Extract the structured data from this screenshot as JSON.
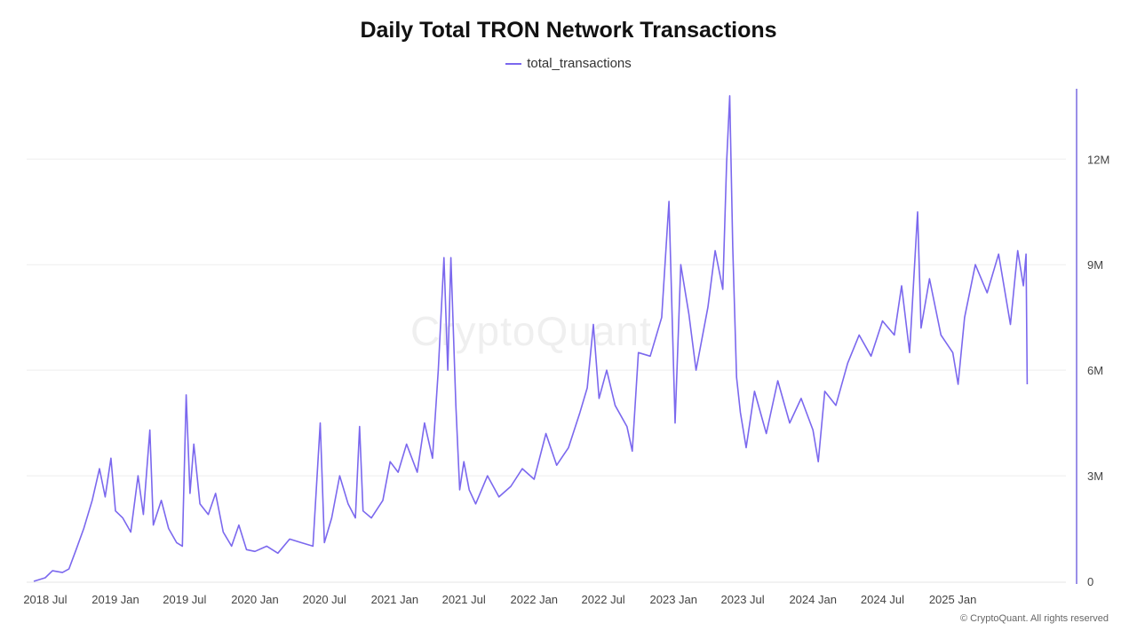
{
  "colors": {
    "series": "#7B68EE",
    "grid": "#eeeeee",
    "axis": "#9a8fe8"
  },
  "copyright": "© CryptoQuant. All rights reserved",
  "watermark": "CryptoQuant",
  "chart_data": {
    "type": "line",
    "title": "Daily Total TRON Network Transactions",
    "legend_position": "top-center",
    "grid": true,
    "y_axis_side": "right",
    "ylim": [
      0,
      14000000
    ],
    "y_ticks": [
      {
        "value": 0,
        "label": "0"
      },
      {
        "value": 3000000,
        "label": "3M"
      },
      {
        "value": 6000000,
        "label": "6M"
      },
      {
        "value": 9000000,
        "label": "9M"
      },
      {
        "value": 12000000,
        "label": "12M"
      }
    ],
    "xlim": [
      "2018-06-01",
      "2025-10-15"
    ],
    "x_ticks": [
      {
        "date": "2018-07-01",
        "label": "2018 Jul"
      },
      {
        "date": "2019-01-01",
        "label": "2019 Jan"
      },
      {
        "date": "2019-07-01",
        "label": "2019 Jul"
      },
      {
        "date": "2020-01-01",
        "label": "2020 Jan"
      },
      {
        "date": "2020-07-01",
        "label": "2020 Jul"
      },
      {
        "date": "2021-01-01",
        "label": "2021 Jan"
      },
      {
        "date": "2021-07-01",
        "label": "2021 Jul"
      },
      {
        "date": "2022-01-01",
        "label": "2022 Jan"
      },
      {
        "date": "2022-07-01",
        "label": "2022 Jul"
      },
      {
        "date": "2023-01-01",
        "label": "2023 Jan"
      },
      {
        "date": "2023-07-01",
        "label": "2023 Jul"
      },
      {
        "date": "2024-01-01",
        "label": "2024 Jan"
      },
      {
        "date": "2024-07-01",
        "label": "2024 Jul"
      },
      {
        "date": "2025-01-01",
        "label": "2025 Jan"
      }
    ],
    "series": [
      {
        "name": "total_transactions",
        "points": [
          [
            "2018-06-01",
            0
          ],
          [
            "2018-07-01",
            100000
          ],
          [
            "2018-07-20",
            300000
          ],
          [
            "2018-08-15",
            250000
          ],
          [
            "2018-09-01",
            350000
          ],
          [
            "2018-09-20",
            900000
          ],
          [
            "2018-10-10",
            1500000
          ],
          [
            "2018-11-01",
            2300000
          ],
          [
            "2018-11-20",
            3200000
          ],
          [
            "2018-12-05",
            2400000
          ],
          [
            "2018-12-20",
            3500000
          ],
          [
            "2019-01-01",
            2000000
          ],
          [
            "2019-01-20",
            1800000
          ],
          [
            "2019-02-10",
            1400000
          ],
          [
            "2019-03-01",
            3000000
          ],
          [
            "2019-03-15",
            1900000
          ],
          [
            "2019-04-01",
            4300000
          ],
          [
            "2019-04-10",
            1600000
          ],
          [
            "2019-05-01",
            2300000
          ],
          [
            "2019-05-20",
            1500000
          ],
          [
            "2019-06-10",
            1100000
          ],
          [
            "2019-06-25",
            1000000
          ],
          [
            "2019-07-05",
            5300000
          ],
          [
            "2019-07-15",
            2500000
          ],
          [
            "2019-07-25",
            3900000
          ],
          [
            "2019-08-10",
            2200000
          ],
          [
            "2019-09-01",
            1900000
          ],
          [
            "2019-09-20",
            2500000
          ],
          [
            "2019-10-10",
            1400000
          ],
          [
            "2019-11-01",
            1000000
          ],
          [
            "2019-11-20",
            1600000
          ],
          [
            "2019-12-10",
            900000
          ],
          [
            "2020-01-01",
            850000
          ],
          [
            "2020-02-01",
            1000000
          ],
          [
            "2020-03-01",
            800000
          ],
          [
            "2020-04-01",
            1200000
          ],
          [
            "2020-05-01",
            1100000
          ],
          [
            "2020-06-01",
            1000000
          ],
          [
            "2020-06-20",
            4500000
          ],
          [
            "2020-07-01",
            1100000
          ],
          [
            "2020-07-20",
            1800000
          ],
          [
            "2020-08-10",
            3000000
          ],
          [
            "2020-09-01",
            2200000
          ],
          [
            "2020-09-20",
            1800000
          ],
          [
            "2020-10-01",
            4400000
          ],
          [
            "2020-10-10",
            2000000
          ],
          [
            "2020-11-01",
            1800000
          ],
          [
            "2020-12-01",
            2300000
          ],
          [
            "2020-12-20",
            3400000
          ],
          [
            "2021-01-10",
            3100000
          ],
          [
            "2021-02-01",
            3900000
          ],
          [
            "2021-03-01",
            3100000
          ],
          [
            "2021-03-20",
            4500000
          ],
          [
            "2021-04-10",
            3500000
          ],
          [
            "2021-04-25",
            6000000
          ],
          [
            "2021-05-10",
            9200000
          ],
          [
            "2021-05-20",
            6000000
          ],
          [
            "2021-05-28",
            9200000
          ],
          [
            "2021-06-10",
            5000000
          ],
          [
            "2021-06-20",
            2600000
          ],
          [
            "2021-07-01",
            3400000
          ],
          [
            "2021-07-15",
            2600000
          ],
          [
            "2021-08-01",
            2200000
          ],
          [
            "2021-09-01",
            3000000
          ],
          [
            "2021-10-01",
            2400000
          ],
          [
            "2021-11-01",
            2700000
          ],
          [
            "2021-12-01",
            3200000
          ],
          [
            "2022-01-01",
            2900000
          ],
          [
            "2022-02-01",
            4200000
          ],
          [
            "2022-03-01",
            3300000
          ],
          [
            "2022-04-01",
            3800000
          ],
          [
            "2022-05-01",
            4800000
          ],
          [
            "2022-05-20",
            5500000
          ],
          [
            "2022-06-05",
            7300000
          ],
          [
            "2022-06-20",
            5200000
          ],
          [
            "2022-07-10",
            6000000
          ],
          [
            "2022-08-01",
            5000000
          ],
          [
            "2022-09-01",
            4400000
          ],
          [
            "2022-09-15",
            3700000
          ],
          [
            "2022-10-01",
            6500000
          ],
          [
            "2022-11-01",
            6400000
          ],
          [
            "2022-12-01",
            7500000
          ],
          [
            "2022-12-20",
            10800000
          ],
          [
            "2023-01-05",
            4500000
          ],
          [
            "2023-01-20",
            9000000
          ],
          [
            "2023-02-10",
            7600000
          ],
          [
            "2023-03-01",
            6000000
          ],
          [
            "2023-04-01",
            7800000
          ],
          [
            "2023-04-20",
            9400000
          ],
          [
            "2023-05-10",
            8300000
          ],
          [
            "2023-05-20",
            11900000
          ],
          [
            "2023-05-28",
            13800000
          ],
          [
            "2023-06-05",
            9500000
          ],
          [
            "2023-06-15",
            5800000
          ],
          [
            "2023-06-25",
            4800000
          ],
          [
            "2023-07-10",
            3800000
          ],
          [
            "2023-08-01",
            5400000
          ],
          [
            "2023-09-01",
            4200000
          ],
          [
            "2023-10-01",
            5700000
          ],
          [
            "2023-11-01",
            4500000
          ],
          [
            "2023-12-01",
            5200000
          ],
          [
            "2024-01-01",
            4300000
          ],
          [
            "2024-01-15",
            3400000
          ],
          [
            "2024-02-01",
            5400000
          ],
          [
            "2024-03-01",
            5000000
          ],
          [
            "2024-04-01",
            6200000
          ],
          [
            "2024-05-01",
            7000000
          ],
          [
            "2024-06-01",
            6400000
          ],
          [
            "2024-07-01",
            7400000
          ],
          [
            "2024-08-01",
            7000000
          ],
          [
            "2024-08-20",
            8400000
          ],
          [
            "2024-09-10",
            6500000
          ],
          [
            "2024-10-01",
            10500000
          ],
          [
            "2024-10-10",
            7200000
          ],
          [
            "2024-11-01",
            8600000
          ],
          [
            "2024-12-01",
            7000000
          ],
          [
            "2025-01-01",
            6500000
          ],
          [
            "2025-01-15",
            5600000
          ],
          [
            "2025-02-01",
            7500000
          ],
          [
            "2025-03-01",
            9000000
          ],
          [
            "2025-04-01",
            8200000
          ],
          [
            "2025-05-01",
            9300000
          ],
          [
            "2025-06-01",
            7300000
          ],
          [
            "2025-06-20",
            9400000
          ],
          [
            "2025-07-05",
            8400000
          ],
          [
            "2025-07-12",
            9300000
          ],
          [
            "2025-07-15",
            5600000
          ]
        ]
      }
    ]
  }
}
